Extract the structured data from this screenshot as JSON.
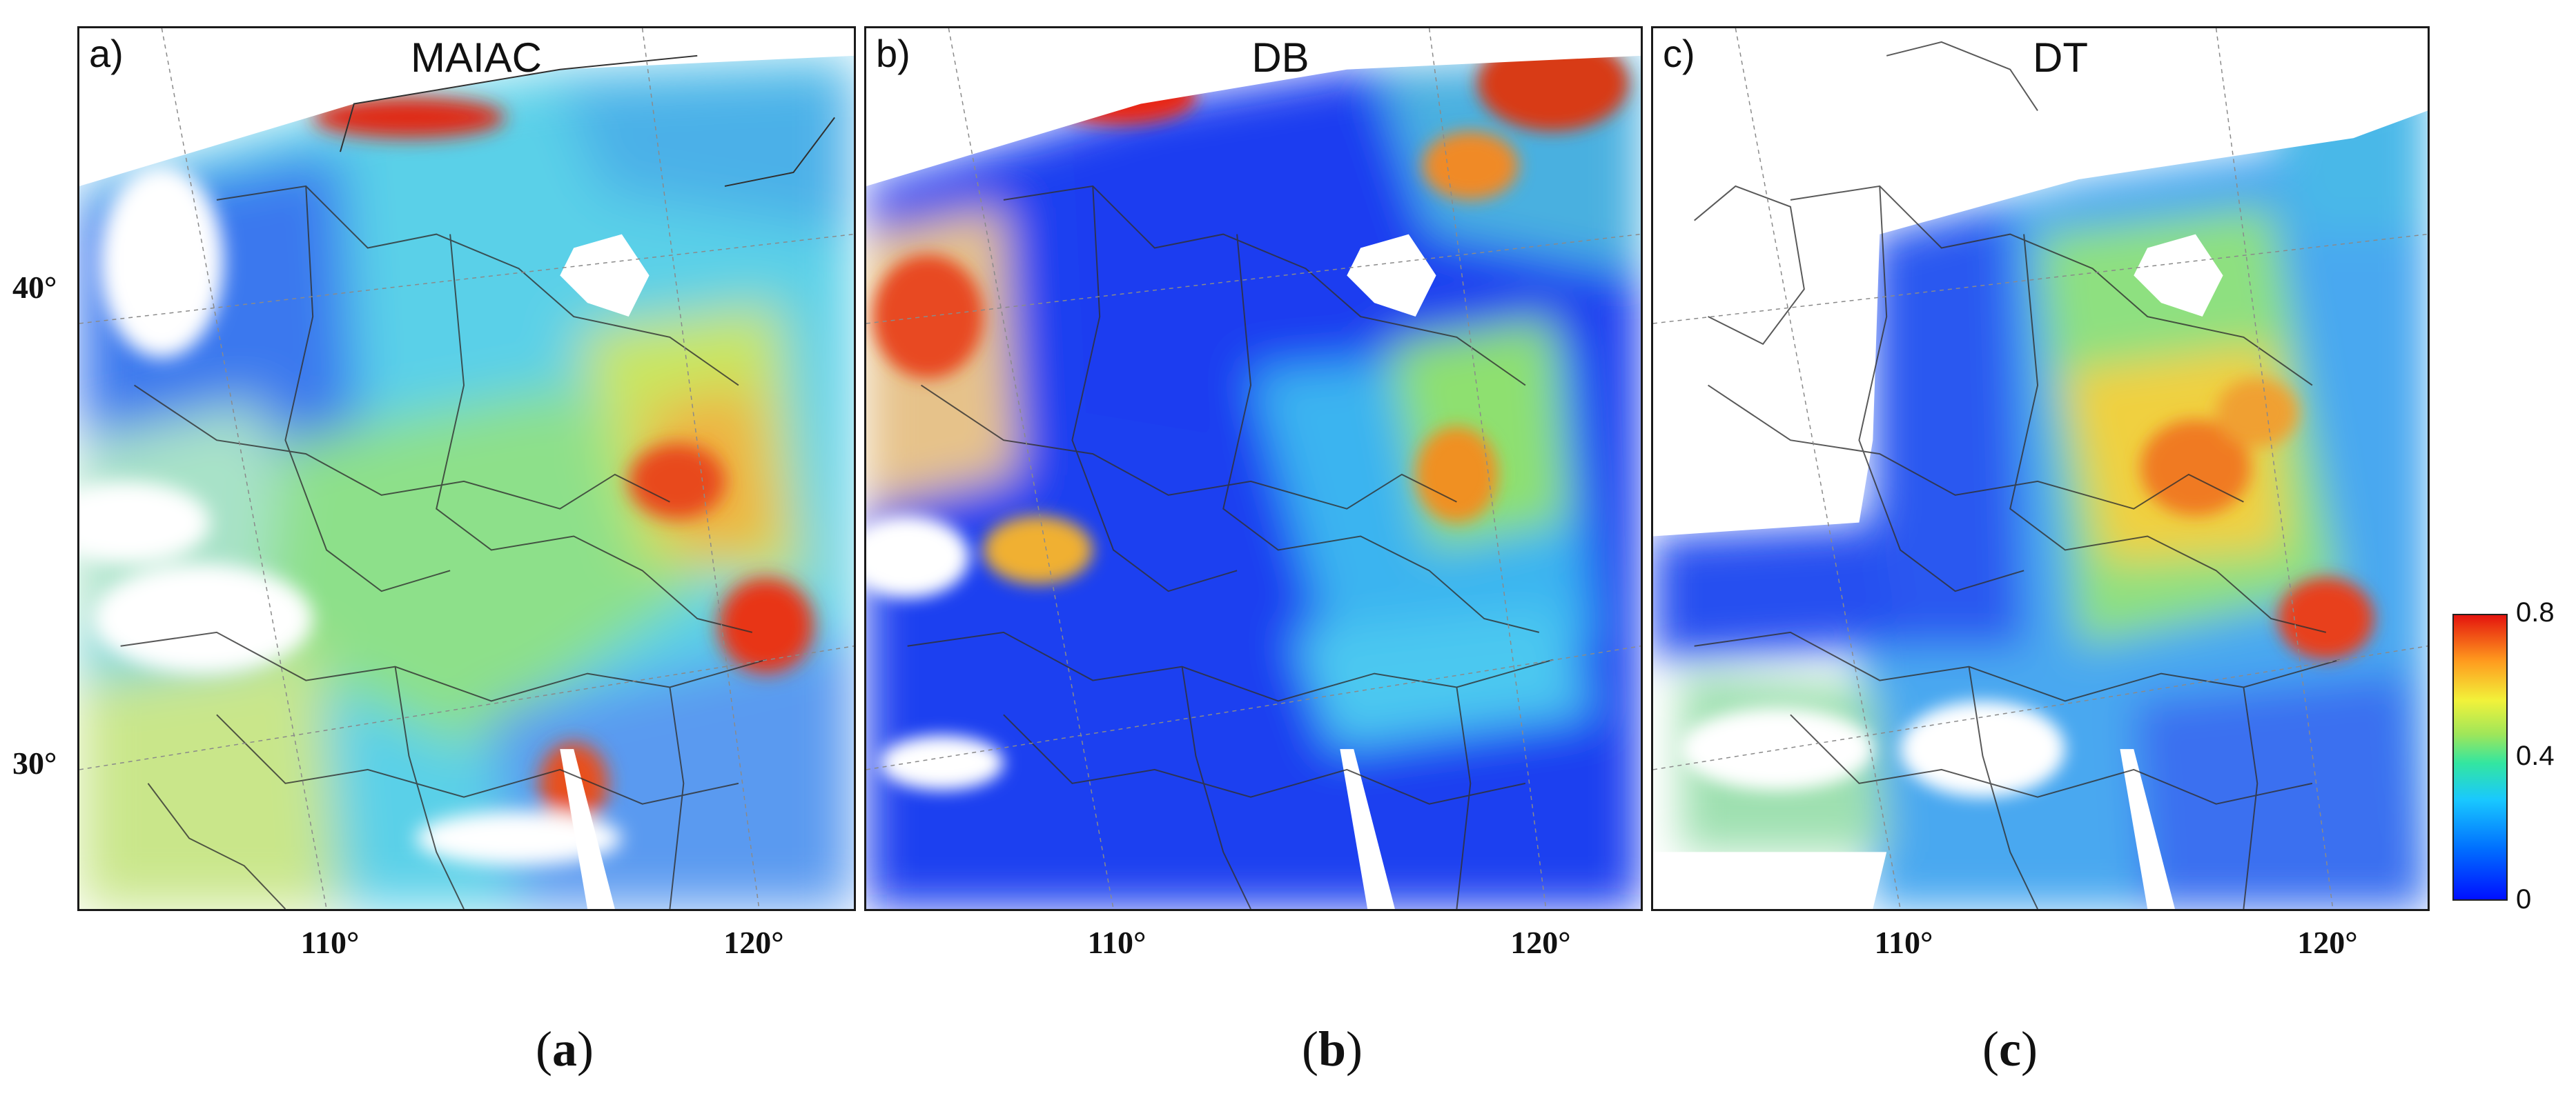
{
  "panels": [
    {
      "letter": "a)",
      "title": "MAIAC",
      "caption_letter": "a"
    },
    {
      "letter": "b)",
      "title": "DB",
      "caption_letter": "b"
    },
    {
      "letter": "c)",
      "title": "DT",
      "caption_letter": "c"
    }
  ],
  "axes": {
    "lat_ticks": [
      "40°",
      "30°"
    ],
    "lon_ticks": [
      "110°",
      "120°"
    ]
  },
  "colorbar": {
    "max_label": "0.8",
    "mid_label": "0.4",
    "min_label": "0"
  },
  "colors": {
    "low": "#0010ff",
    "mid": "#33e6a0",
    "high": "#e4140e",
    "border": "#1a1a1a"
  }
}
